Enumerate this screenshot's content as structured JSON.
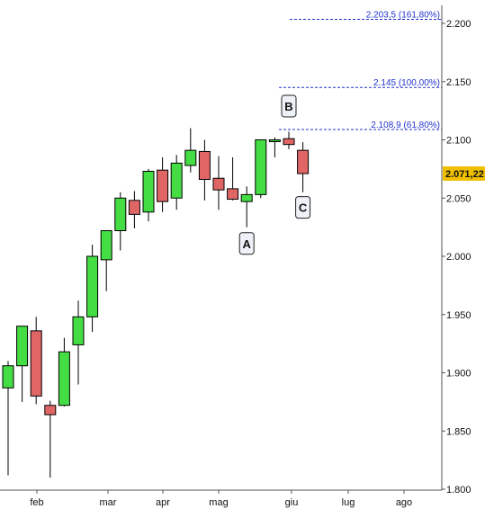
{
  "chart_data": {
    "type": "candlestick",
    "y_axis_side": "right",
    "ylim": [
      1.8,
      2.2
    ],
    "y_ticks": [
      "1.800",
      "1.850",
      "1.900",
      "1.950",
      "2.000",
      "2.050",
      "2.100",
      "2.150",
      "2.200"
    ],
    "x_labels": [
      "feb",
      "mar",
      "apr",
      "mag",
      "giu",
      "lug",
      "ago"
    ],
    "last_price": "2.071,22",
    "colors": {
      "up": "#44dd44",
      "down": "#e06666",
      "fib_line": "#2233cc",
      "wick": "#000000",
      "last_price_bg": "#f0c000"
    },
    "candles": [
      {
        "o": 1.887,
        "h": 1.91,
        "l": 1.812,
        "c": 1.906
      },
      {
        "o": 1.906,
        "h": 1.94,
        "l": 1.875,
        "c": 1.94
      },
      {
        "o": 1.936,
        "h": 1.948,
        "l": 1.873,
        "c": 1.88
      },
      {
        "o": 1.872,
        "h": 1.876,
        "l": 1.81,
        "c": 1.864
      },
      {
        "o": 1.872,
        "h": 1.93,
        "l": 1.871,
        "c": 1.918
      },
      {
        "o": 1.924,
        "h": 1.962,
        "l": 1.89,
        "c": 1.948
      },
      {
        "o": 1.948,
        "h": 2.01,
        "l": 1.935,
        "c": 2.0
      },
      {
        "o": 1.997,
        "h": 2.022,
        "l": 1.97,
        "c": 2.022
      },
      {
        "o": 2.022,
        "h": 2.055,
        "l": 2.005,
        "c": 2.05
      },
      {
        "o": 2.048,
        "h": 2.056,
        "l": 2.024,
        "c": 2.036
      },
      {
        "o": 2.038,
        "h": 2.075,
        "l": 2.03,
        "c": 2.073
      },
      {
        "o": 2.074,
        "h": 2.085,
        "l": 2.038,
        "c": 2.047
      },
      {
        "o": 2.05,
        "h": 2.087,
        "l": 2.04,
        "c": 2.08
      },
      {
        "o": 2.078,
        "h": 2.11,
        "l": 2.072,
        "c": 2.091
      },
      {
        "o": 2.09,
        "h": 2.1,
        "l": 2.048,
        "c": 2.066
      },
      {
        "o": 2.067,
        "h": 2.086,
        "l": 2.04,
        "c": 2.057
      },
      {
        "o": 2.058,
        "h": 2.085,
        "l": 2.048,
        "c": 2.049
      },
      {
        "o": 2.047,
        "h": 2.06,
        "l": 2.025,
        "c": 2.053
      },
      {
        "o": 2.053,
        "h": 2.1,
        "l": 2.05,
        "c": 2.1
      },
      {
        "o": 2.1,
        "h": 2.102,
        "l": 2.085,
        "c": 2.1
      },
      {
        "o": 2.101,
        "h": 2.107,
        "l": 2.092,
        "c": 2.096
      },
      {
        "o": 2.091,
        "h": 2.098,
        "l": 2.055,
        "c": 2.071
      }
    ],
    "fib_levels": [
      {
        "value": 2.1089,
        "label": "2.108,9 (61,80%)"
      },
      {
        "value": 2.145,
        "label": "2.145 (100,00%)"
      },
      {
        "value": 2.2035,
        "label": "2.203,5 (161,80%)"
      }
    ],
    "wave_labels": [
      {
        "text": "A",
        "value": 2.011,
        "candle": 17
      },
      {
        "text": "B",
        "value": 2.129,
        "candle": 20
      },
      {
        "text": "C",
        "value": 2.042,
        "candle": 21
      }
    ]
  }
}
